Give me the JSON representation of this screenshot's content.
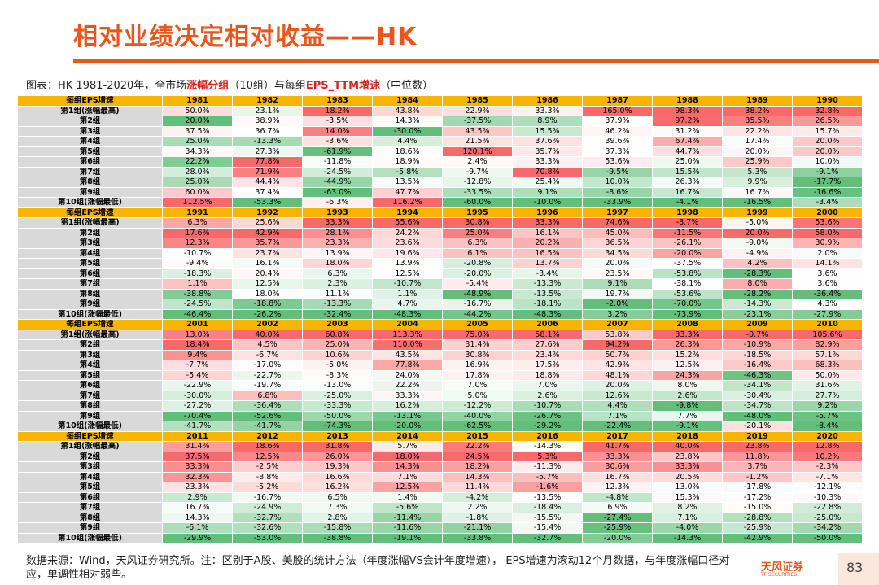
{
  "header": {
    "title": "相对业绩决定相对收益——HK"
  },
  "caption": {
    "parts": [
      "图表：HK 1981-2020年，全市场",
      "涨幅分组",
      "（10组）与每组",
      "EPS_TTM增速",
      "（中位数）"
    ]
  },
  "table": {
    "corner": "每组EPS增速",
    "row_labels": [
      "第1组(涨幅最高)",
      "第2组",
      "第3组",
      "第4组",
      "第5组",
      "第6组",
      "第7组",
      "第8组",
      "第9组",
      "第10组(涨幅最低)"
    ],
    "blocks": [
      {
        "years": [
          "1981",
          "1982",
          "1983",
          "1984",
          "1985",
          "1986",
          "1987",
          "1988",
          "1989",
          "1990"
        ],
        "rows": [
          [
            "50.0%",
            "23.1%",
            "18.2%",
            "43.8%",
            "22.9%",
            "33.3%",
            "165.0%",
            "98.3%",
            "38.2%",
            "32.8%"
          ],
          [
            "20.0%",
            "38.9%",
            "-3.5%",
            "14.3%",
            "-37.5%",
            "8.9%",
            "37.9%",
            "97.2%",
            "35.5%",
            "26.5%"
          ],
          [
            "37.5%",
            "36.7%",
            "14.0%",
            "-30.0%",
            "43.5%",
            "15.5%",
            "46.2%",
            "31.2%",
            "22.2%",
            "15.7%"
          ],
          [
            "25.0%",
            "-13.3%",
            "-3.6%",
            "4.4%",
            "21.5%",
            "37.6%",
            "39.6%",
            "67.4%",
            "17.4%",
            "20.0%"
          ],
          [
            "34.3%",
            "27.3%",
            "-61.9%",
            "18.6%",
            "120.1%",
            "35.7%",
            "37.3%",
            "44.7%",
            "20.0%",
            "20.0%"
          ],
          [
            "22.2%",
            "77.8%",
            "-11.8%",
            "18.9%",
            "2.4%",
            "33.3%",
            "53.6%",
            "25.0%",
            "25.9%",
            "10.0%"
          ],
          [
            "28.0%",
            "71.9%",
            "-24.5%",
            "-5.8%",
            "-9.7%",
            "70.8%",
            "-9.5%",
            "15.5%",
            "5.3%",
            "-9.1%"
          ],
          [
            "25.0%",
            "44.4%",
            "-44.9%",
            "13.5%",
            "-12.8%",
            "25.4%",
            "10.0%",
            "26.3%",
            "9.9%",
            "-17.7%"
          ],
          [
            "60.0%",
            "37.4%",
            "-63.0%",
            "47.7%",
            "-33.5%",
            "9.1%",
            "-8.6%",
            "16.7%",
            "16.7%",
            "-16.6%"
          ],
          [
            "112.5%",
            "-53.3%",
            "-6.3%",
            "116.2%",
            "-60.0%",
            "-10.0%",
            "-33.9%",
            "-4.1%",
            "-16.5%",
            "-3.4%"
          ]
        ]
      },
      {
        "years": [
          "1991",
          "1992",
          "1993",
          "1994",
          "1995",
          "1996",
          "1997",
          "1998",
          "1999",
          "2000"
        ],
        "rows": [
          [
            "6.3%",
            "25.6%",
            "33.3%",
            "55.6%",
            "30.8%",
            "33.3%",
            "74.6%",
            "-8.7%",
            "-5.0%",
            "53.6%"
          ],
          [
            "17.6%",
            "42.9%",
            "28.1%",
            "24.2%",
            "25.0%",
            "16.1%",
            "45.0%",
            "-11.5%",
            "20.0%",
            "58.0%"
          ],
          [
            "12.3%",
            "35.7%",
            "23.3%",
            "23.6%",
            "6.3%",
            "20.2%",
            "36.5%",
            "-26.1%",
            "-9.0%",
            "30.9%"
          ],
          [
            "-10.7%",
            "23.7%",
            "13.9%",
            "19.6%",
            "6.1%",
            "16.5%",
            "34.5%",
            "-20.0%",
            "-4.9%",
            "2.0%"
          ],
          [
            "-9.4%",
            "16.1%",
            "18.0%",
            "13.9%",
            "-20.8%",
            "13.7%",
            "20.0%",
            "-37.5%",
            "4.2%",
            "14.1%"
          ],
          [
            "-18.3%",
            "20.4%",
            "6.3%",
            "12.5%",
            "-20.0%",
            "-3.4%",
            "23.5%",
            "-53.8%",
            "-28.3%",
            "3.6%"
          ],
          [
            "1.1%",
            "12.5%",
            "2.3%",
            "-10.7%",
            "-5.4%",
            "-13.3%",
            "9.1%",
            "-38.1%",
            "8.0%",
            "3.6%"
          ],
          [
            "-38.8%",
            "18.0%",
            "11.1%",
            "1.1%",
            "-48.9%",
            "-13.5%",
            "19.7%",
            "-53.6%",
            "-28.2%",
            "-36.4%"
          ],
          [
            "-24.5%",
            "-18.8%",
            "-13.3%",
            "4.7%",
            "-16.7%",
            "-18.1%",
            "-2.0%",
            "-70.0%",
            "-14.3%",
            "4.3%"
          ],
          [
            "-46.4%",
            "-26.2%",
            "-32.4%",
            "-48.3%",
            "-44.2%",
            "-48.3%",
            "3.2%",
            "-73.9%",
            "-23.1%",
            "-27.9%"
          ]
        ]
      },
      {
        "years": [
          "2001",
          "2002",
          "2003",
          "2004",
          "2005",
          "2006",
          "2007",
          "2008",
          "2009",
          "2010"
        ],
        "rows": [
          [
            "13.0%",
            "40.0%",
            "60.8%",
            "113.3%",
            "75.0%",
            "58.1%",
            "53.8%",
            "33.3%",
            "-0.7%",
            "105.6%"
          ],
          [
            "18.4%",
            "4.5%",
            "25.0%",
            "110.0%",
            "31.4%",
            "27.6%",
            "94.2%",
            "26.3%",
            "-10.9%",
            "82.9%"
          ],
          [
            "9.4%",
            "-6.7%",
            "10.6%",
            "43.5%",
            "30.8%",
            "23.4%",
            "50.7%",
            "15.2%",
            "-18.5%",
            "57.1%"
          ],
          [
            "-7.7%",
            "-17.0%",
            "-5.0%",
            "77.8%",
            "16.9%",
            "17.5%",
            "42.9%",
            "12.5%",
            "-16.4%",
            "68.3%"
          ],
          [
            "-5.4%",
            "-22.7%",
            "-8.3%",
            "24.0%",
            "17.8%",
            "18.8%",
            "48.1%",
            "24.3%",
            "-46.3%",
            "50.0%"
          ],
          [
            "-22.9%",
            "-19.7%",
            "-13.0%",
            "22.2%",
            "7.0%",
            "7.0%",
            "20.0%",
            "8.0%",
            "-34.1%",
            "31.6%"
          ],
          [
            "-30.0%",
            "6.8%",
            "-25.0%",
            "33.3%",
            "5.0%",
            "2.6%",
            "12.6%",
            "2.6%",
            "-30.4%",
            "27.7%"
          ],
          [
            "-27.2%",
            "-36.4%",
            "-33.3%",
            "16.2%",
            "-12.2%",
            "-10.7%",
            "4.4%",
            "-9.8%",
            "-34.7%",
            "9.2%"
          ],
          [
            "-70.4%",
            "-52.6%",
            "-50.0%",
            "-13.1%",
            "-40.0%",
            "-26.7%",
            "7.1%",
            "7.7%",
            "-48.0%",
            "-5.7%"
          ],
          [
            "-41.7%",
            "-41.7%",
            "-74.3%",
            "-20.0%",
            "-62.5%",
            "-29.2%",
            "-22.4%",
            "-9.1%",
            "-20.1%",
            "-8.4%"
          ]
        ]
      },
      {
        "years": [
          "2011",
          "2012",
          "2013",
          "2014",
          "2015",
          "2016",
          "2017",
          "2018",
          "2019",
          "2020"
        ],
        "rows": [
          [
            "31.4%",
            "18.6%",
            "31.8%",
            "5.7%",
            "22.2%",
            "-14.3%",
            "41.7%",
            "40.0%",
            "23.8%",
            "12.8%"
          ],
          [
            "37.5%",
            "12.5%",
            "26.0%",
            "18.0%",
            "24.5%",
            "5.3%",
            "33.3%",
            "23.8%",
            "11.8%",
            "10.2%"
          ],
          [
            "33.3%",
            "-2.5%",
            "19.3%",
            "14.3%",
            "18.2%",
            "-11.3%",
            "30.6%",
            "33.3%",
            "3.7%",
            "-2.3%"
          ],
          [
            "32.3%",
            "-8.8%",
            "16.6%",
            "7.1%",
            "14.3%",
            "-5.7%",
            "16.7%",
            "20.5%",
            "-1.2%",
            "-7.1%"
          ],
          [
            "23.3%",
            "-5.2%",
            "16.2%",
            "12.5%",
            "11.4%",
            "-1.6%",
            "12.3%",
            "13.0%",
            "-17.8%",
            "-12.1%"
          ],
          [
            "2.9%",
            "-16.7%",
            "6.5%",
            "1.4%",
            "-4.2%",
            "-13.5%",
            "-4.8%",
            "15.3%",
            "-17.2%",
            "-10.3%"
          ],
          [
            "16.7%",
            "-24.9%",
            "7.3%",
            "-5.6%",
            "2.2%",
            "-18.4%",
            "6.9%",
            "8.2%",
            "-15.0%",
            "-22.8%"
          ],
          [
            "14.3%",
            "-32.7%",
            "2.8%",
            "-11.4%",
            "-1.8%",
            "-15.5%",
            "-27.4%",
            "7.1%",
            "-28.8%",
            "-25.0%"
          ],
          [
            "-6.1%",
            "-32.6%",
            "-15.8%",
            "-11.6%",
            "-21.1%",
            "-15.4%",
            "-25.9%",
            "-4.0%",
            "-25.9%",
            "-34.2%"
          ],
          [
            "-29.9%",
            "-53.0%",
            "-38.8%",
            "-19.1%",
            "-33.8%",
            "-32.7%",
            "-20.0%",
            "-14.3%",
            "-42.9%",
            "-50.0%"
          ]
        ]
      }
    ]
  },
  "footer": {
    "note": "数据来源：Wind，天风证券研究所。注：区别于A股、美股的统计方法（年度涨幅VS会计年度增速），  EPS增速为滚动12个月数据，与年度涨幅口径对应，单调性相对弱些。",
    "logo": "天风证券",
    "logo_sub": "TF SECURITIES",
    "page": "83"
  }
}
